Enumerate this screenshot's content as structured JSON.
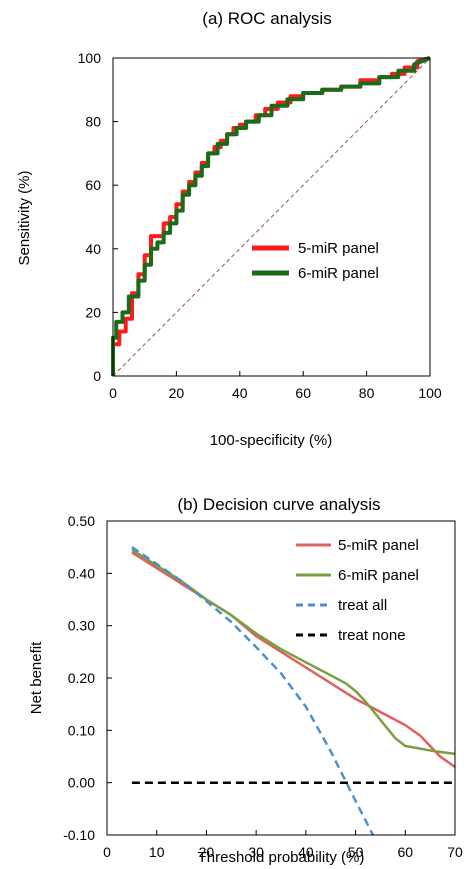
{
  "chart_data": [
    {
      "type": "line",
      "title": "(a) ROC analysis",
      "xlabel": "100-specificity (%)",
      "ylabel": "Sensitivity (%)",
      "xlim": [
        0,
        100
      ],
      "ylim": [
        0,
        100
      ],
      "xticks": [
        "0",
        "20",
        "40",
        "60",
        "80",
        "100"
      ],
      "yticks": [
        "0",
        "20",
        "40",
        "60",
        "80",
        "100"
      ],
      "grid": false,
      "legend_position": "center-right",
      "reference_line": {
        "from": [
          0,
          0
        ],
        "to": [
          100,
          100
        ],
        "color": "#a05050",
        "style": "dashed"
      },
      "series": [
        {
          "name": "5-miR panel",
          "color": "#ff1a1a",
          "x": [
            0,
            0,
            2,
            2,
            4,
            4,
            6,
            6,
            8,
            8,
            10,
            10,
            12,
            12,
            14,
            14,
            16,
            16,
            18,
            18,
            20,
            20,
            22,
            22,
            24,
            24,
            26,
            26,
            28,
            28,
            30,
            30,
            32,
            32,
            34,
            34,
            36,
            36,
            38,
            38,
            40,
            40,
            42,
            42,
            45,
            45,
            48,
            48,
            52,
            52,
            56,
            56,
            60,
            60,
            66,
            66,
            72,
            72,
            78,
            78,
            84,
            84,
            88,
            88,
            92,
            92,
            96,
            96,
            100
          ],
          "y": [
            0,
            10,
            10,
            14,
            14,
            18,
            18,
            26,
            26,
            32,
            32,
            38,
            38,
            44,
            44,
            44,
            44,
            48,
            48,
            50,
            50,
            54,
            54,
            58,
            58,
            61,
            61,
            64,
            64,
            67,
            67,
            70,
            70,
            72,
            72,
            74,
            74,
            76,
            76,
            78,
            78,
            79,
            79,
            80,
            80,
            82,
            82,
            84,
            84,
            86,
            86,
            88,
            88,
            89,
            89,
            90,
            90,
            91,
            91,
            93,
            93,
            94,
            94,
            95,
            95,
            97,
            97,
            99,
            100
          ]
        },
        {
          "name": "6-miR panel",
          "color": "#1a6b1a",
          "x": [
            0,
            0,
            1,
            1,
            3,
            3,
            5,
            5,
            8,
            8,
            10,
            10,
            12,
            12,
            14,
            14,
            16,
            16,
            18,
            18,
            20,
            20,
            22,
            22,
            24,
            24,
            26,
            26,
            28,
            28,
            30,
            30,
            33,
            33,
            36,
            36,
            39,
            39,
            42,
            42,
            46,
            46,
            50,
            50,
            55,
            55,
            60,
            60,
            66,
            66,
            72,
            72,
            78,
            78,
            84,
            84,
            90,
            90,
            95,
            95,
            100
          ],
          "y": [
            0,
            12,
            12,
            17,
            17,
            20,
            20,
            25,
            25,
            30,
            30,
            35,
            35,
            40,
            40,
            42,
            42,
            45,
            45,
            48,
            48,
            52,
            52,
            57,
            57,
            60,
            60,
            63,
            63,
            66,
            66,
            70,
            70,
            73,
            73,
            76,
            76,
            78,
            78,
            80,
            80,
            82,
            82,
            85,
            85,
            87,
            87,
            89,
            89,
            90,
            90,
            91,
            91,
            92,
            92,
            94,
            94,
            96,
            96,
            98,
            100
          ]
        }
      ]
    },
    {
      "type": "line",
      "title": "(b) Decision curve analysis",
      "xlabel": "Threshold probability (%)",
      "ylabel": "Net benefit",
      "xlim": [
        0,
        70
      ],
      "ylim": [
        -0.1,
        0.5
      ],
      "xticks": [
        "0",
        "10",
        "20",
        "30",
        "40",
        "50",
        "60",
        "70"
      ],
      "yticks": [
        "-0.10",
        "0.00",
        "0.10",
        "0.20",
        "0.30",
        "0.40",
        "0.50"
      ],
      "grid": false,
      "legend_position": "top-right",
      "series": [
        {
          "name": "5-miR panel",
          "color": "#e06060",
          "style": "solid",
          "x": [
            5,
            10,
            15,
            20,
            25,
            30,
            35,
            40,
            45,
            50,
            55,
            60,
            63,
            65,
            67,
            70
          ],
          "y": [
            0.44,
            0.41,
            0.38,
            0.35,
            0.32,
            0.28,
            0.25,
            0.22,
            0.19,
            0.16,
            0.135,
            0.11,
            0.09,
            0.07,
            0.05,
            0.03
          ]
        },
        {
          "name": "6-miR panel",
          "color": "#78a040",
          "style": "solid",
          "x": [
            5,
            10,
            15,
            20,
            25,
            30,
            35,
            40,
            45,
            48,
            50,
            52,
            55,
            58,
            60,
            63,
            66,
            70
          ],
          "y": [
            0.445,
            0.415,
            0.385,
            0.35,
            0.32,
            0.285,
            0.255,
            0.23,
            0.205,
            0.19,
            0.175,
            0.155,
            0.12,
            0.085,
            0.07,
            0.065,
            0.06,
            0.055
          ]
        },
        {
          "name": "treat all",
          "color": "#4a90d0",
          "style": "dashed",
          "x": [
            5,
            10,
            15,
            20,
            25,
            30,
            35,
            40,
            45,
            50,
            53.5
          ],
          "y": [
            0.45,
            0.418,
            0.385,
            0.347,
            0.307,
            0.259,
            0.209,
            0.145,
            0.06,
            -0.035,
            -0.1
          ]
        },
        {
          "name": "treat none",
          "color": "#000000",
          "style": "dashed",
          "x": [
            5,
            70
          ],
          "y": [
            0,
            0
          ]
        }
      ]
    }
  ]
}
